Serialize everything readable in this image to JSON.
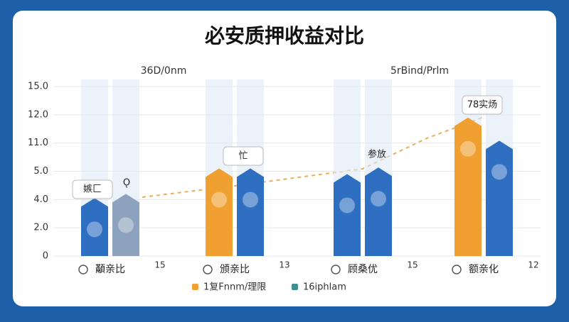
{
  "chart_data": {
    "type": "bar",
    "title": "必安质押收益对比",
    "subtitles": [
      "36D/0nm",
      "5rBind/Prlm"
    ],
    "categories": [
      "顢亲比",
      "颁亲比",
      "顾桑优",
      "额亲化"
    ],
    "category_notes": [
      "15",
      "13",
      "15",
      "12"
    ],
    "series": [
      {
        "name": "1复Fnnm/理限",
        "color": "#f0a030",
        "colors": [
          "#2f6fc2",
          "#f0a030",
          "#2f6fc2",
          "#f0a030"
        ],
        "values": [
          3.9,
          5.0,
          4.8,
          11.8
        ]
      },
      {
        "name": "16iphlam",
        "color": "#3f8f8f",
        "colors": [
          "#8da3bd",
          "#2f6fc2",
          "#2f6fc2",
          "#2f6fc2"
        ],
        "values": [
          4.1,
          5.0,
          5.2,
          10.9
        ]
      }
    ],
    "annotations": [
      "嫉匚",
      "Ǫ",
      "忙",
      "参放",
      "78实炀"
    ],
    "ylim": [
      0,
      15
    ],
    "yticks": [
      {
        "value": 15,
        "label": "15.0"
      },
      {
        "value": 12,
        "label": "12.0"
      },
      {
        "value": 11,
        "label": "11.0"
      },
      {
        "value": 5,
        "label": "5.0"
      },
      {
        "value": 4,
        "label": "4.0"
      },
      {
        "value": 2,
        "label": "2.0"
      },
      0
    ],
    "grid": true
  }
}
